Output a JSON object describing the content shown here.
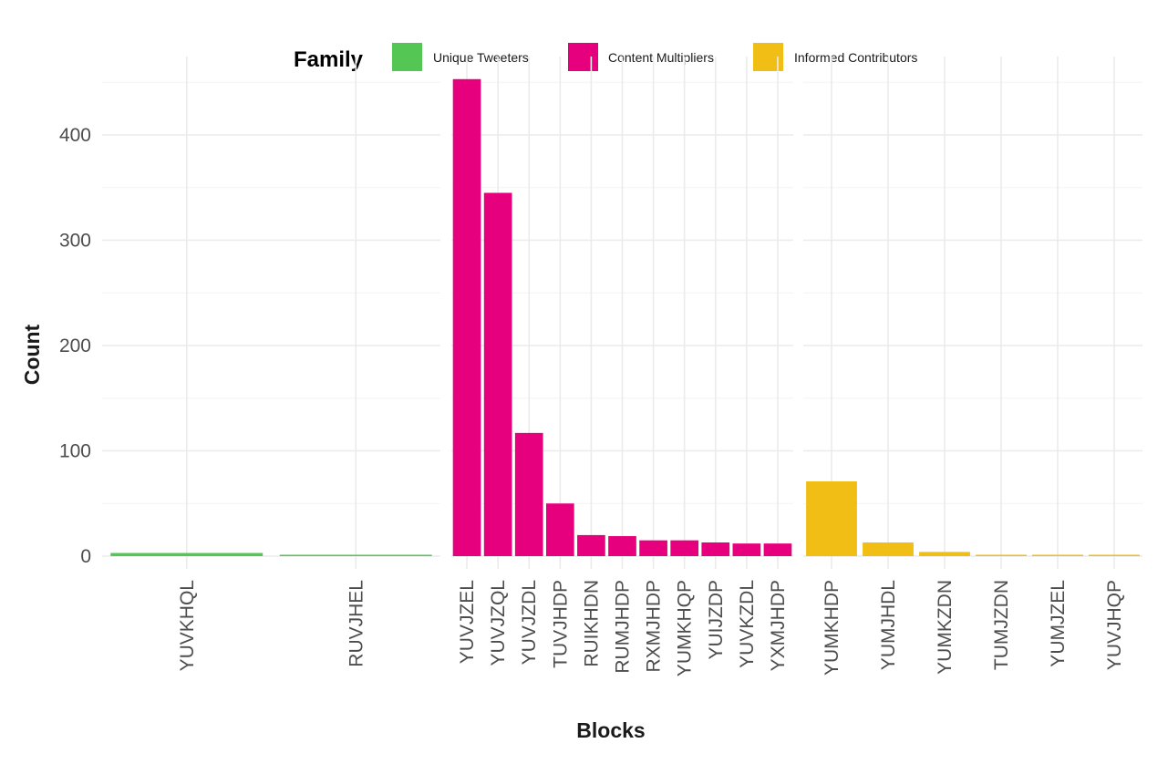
{
  "chart_data": {
    "type": "bar",
    "xlabel": "Blocks",
    "ylabel": "Count",
    "ylim": [
      0,
      455
    ],
    "y_ticks": [
      0,
      100,
      200,
      300,
      400
    ],
    "grid": true,
    "legend": {
      "title": "Family",
      "position": "top",
      "entries": [
        {
          "label": "Unique Tweeters",
          "color": "#54c654"
        },
        {
          "label": "Content Multipliers",
          "color": "#e6007e"
        },
        {
          "label": "Informed Contributors",
          "color": "#f0be14"
        }
      ]
    },
    "panels": [
      {
        "family": "Unique Tweeters",
        "color": "#54c654",
        "categories": [
          "YUVKHQL",
          "RUVJHEL"
        ],
        "values": [
          3,
          1
        ]
      },
      {
        "family": "Content Multipliers",
        "color": "#e6007e",
        "categories": [
          "YUVJZEL",
          "YUVJZQL",
          "YUVJZDL",
          "TUVJHDP",
          "RUIKHDN",
          "RUMJHDP",
          "RXMJHDP",
          "YUMKHQP",
          "YUIJZDP",
          "YUVKZDL",
          "YXMJHDP"
        ],
        "values": [
          453,
          345,
          117,
          50,
          20,
          19,
          15,
          15,
          13,
          12,
          12
        ]
      },
      {
        "family": "Informed Contributors",
        "color": "#f0be14",
        "categories": [
          "YUMKHDP",
          "YUMJHDL",
          "YUMKZDN",
          "TUMJZDN",
          "YUMJZEL",
          "YUVJHQP"
        ],
        "values": [
          71,
          13,
          4,
          1,
          1,
          1
        ]
      }
    ]
  }
}
